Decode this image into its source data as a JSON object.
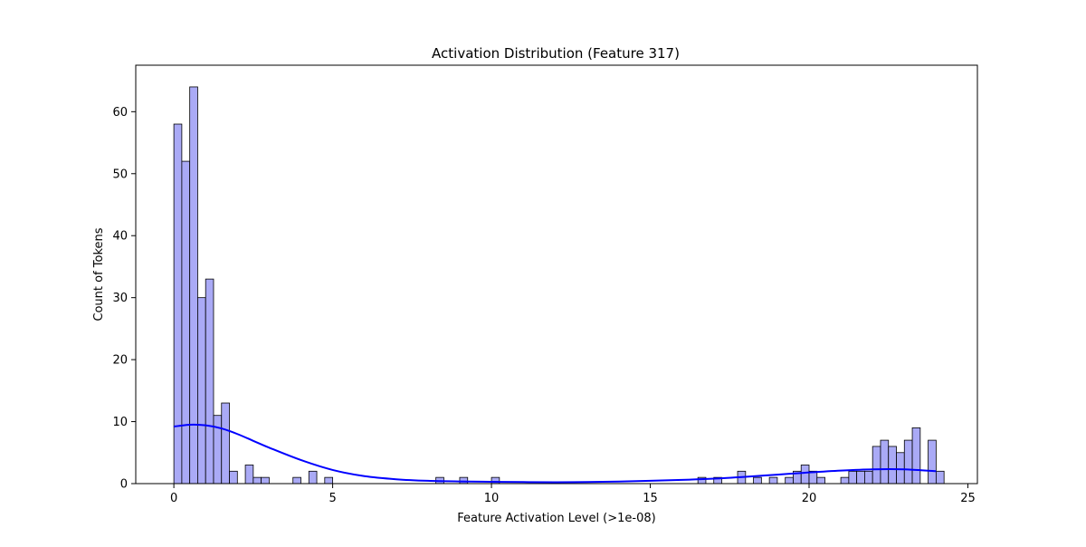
{
  "chart_data": {
    "type": "bar",
    "subtype": "histogram-with-kde",
    "title": "Activation Distribution (Feature 317)",
    "xlabel": "Feature Activation Level (>1e-08)",
    "ylabel": "Count of Tokens",
    "xlim": [
      -1.2,
      25.3
    ],
    "ylim": [
      0,
      67.5
    ],
    "x_ticks": [
      0,
      5,
      10,
      15,
      20,
      25
    ],
    "y_ticks": [
      0,
      10,
      20,
      30,
      40,
      50,
      60
    ],
    "grid": false,
    "bar_fill": "#aaaaf6",
    "bar_edge": "#000000",
    "kde_color": "#0000ff",
    "bin_width": 0.25,
    "bins": [
      {
        "x": 0.0,
        "count": 58
      },
      {
        "x": 0.25,
        "count": 52
      },
      {
        "x": 0.5,
        "count": 64
      },
      {
        "x": 0.75,
        "count": 30
      },
      {
        "x": 1.0,
        "count": 33
      },
      {
        "x": 1.25,
        "count": 11
      },
      {
        "x": 1.5,
        "count": 13
      },
      {
        "x": 1.75,
        "count": 2
      },
      {
        "x": 2.25,
        "count": 3
      },
      {
        "x": 2.5,
        "count": 1
      },
      {
        "x": 2.75,
        "count": 1
      },
      {
        "x": 3.75,
        "count": 1
      },
      {
        "x": 4.25,
        "count": 2
      },
      {
        "x": 4.75,
        "count": 1
      },
      {
        "x": 8.25,
        "count": 1
      },
      {
        "x": 9.0,
        "count": 1
      },
      {
        "x": 10.0,
        "count": 1
      },
      {
        "x": 16.5,
        "count": 1
      },
      {
        "x": 17.0,
        "count": 1
      },
      {
        "x": 17.75,
        "count": 2
      },
      {
        "x": 18.25,
        "count": 1
      },
      {
        "x": 18.75,
        "count": 1
      },
      {
        "x": 19.25,
        "count": 1
      },
      {
        "x": 19.5,
        "count": 2
      },
      {
        "x": 19.75,
        "count": 3
      },
      {
        "x": 20.0,
        "count": 2
      },
      {
        "x": 20.25,
        "count": 1
      },
      {
        "x": 21.0,
        "count": 1
      },
      {
        "x": 21.25,
        "count": 2
      },
      {
        "x": 21.5,
        "count": 2
      },
      {
        "x": 21.75,
        "count": 2
      },
      {
        "x": 22.0,
        "count": 6
      },
      {
        "x": 22.25,
        "count": 7
      },
      {
        "x": 22.5,
        "count": 6
      },
      {
        "x": 22.75,
        "count": 5
      },
      {
        "x": 23.0,
        "count": 7
      },
      {
        "x": 23.25,
        "count": 9
      },
      {
        "x": 23.75,
        "count": 7
      },
      {
        "x": 24.0,
        "count": 2
      }
    ],
    "kde": {
      "x": [
        0,
        0.5,
        1,
        1.5,
        2,
        2.5,
        3,
        4,
        5,
        6,
        7,
        8,
        9,
        10,
        11,
        12,
        13,
        14,
        15,
        16,
        17,
        18,
        19,
        20,
        21,
        22,
        23,
        24
      ],
      "y": [
        9.2,
        9.5,
        9.4,
        8.9,
        8.0,
        6.9,
        5.8,
        3.8,
        2.2,
        1.2,
        0.7,
        0.45,
        0.35,
        0.3,
        0.25,
        0.22,
        0.25,
        0.33,
        0.45,
        0.6,
        0.8,
        1.1,
        1.45,
        1.8,
        2.1,
        2.3,
        2.3,
        2.0
      ]
    }
  }
}
